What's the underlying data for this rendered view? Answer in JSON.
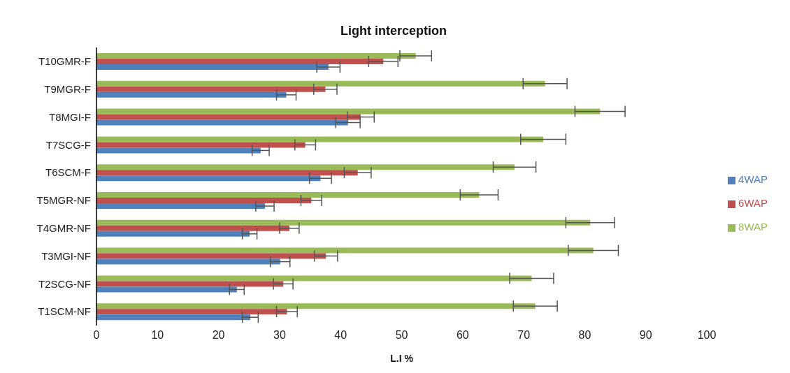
{
  "chart_data": {
    "type": "bar",
    "orientation": "horizontal",
    "title": "Light interception",
    "xlabel": "L.I %",
    "categories": [
      "T10GMR-F",
      "T9MGR-F",
      "T8MGI-F",
      "T7SCG-F",
      "T6SCM-F",
      "T5MGR-NF",
      "T4GMR-NF",
      "T3MGI-NF",
      "T2SCG-NF",
      "T1SCM-NF"
    ],
    "series": [
      {
        "name": "8WAP",
        "color": "#9bbb59",
        "values": [
          52.3,
          73.5,
          82.5,
          73.2,
          68.5,
          62.7,
          80.9,
          81.4,
          71.3,
          71.9
        ],
        "errors": [
          2.6,
          3.6,
          4.1,
          3.7,
          3.5,
          3.1,
          4.0,
          4.1,
          3.6,
          3.6
        ]
      },
      {
        "name": "6WAP",
        "color": "#c0504d",
        "values": [
          47.0,
          37.5,
          43.3,
          34.2,
          42.8,
          35.2,
          31.6,
          37.6,
          30.6,
          31.2
        ],
        "errors": [
          2.4,
          1.9,
          2.2,
          1.7,
          2.2,
          1.7,
          1.6,
          1.9,
          1.6,
          1.7
        ]
      },
      {
        "name": "4WAP",
        "color": "#4f81bd",
        "values": [
          38.0,
          31.1,
          41.2,
          26.9,
          36.7,
          27.6,
          25.1,
          30.1,
          23.0,
          25.2
        ],
        "errors": [
          1.9,
          1.6,
          2.0,
          1.4,
          1.8,
          1.5,
          1.2,
          1.6,
          1.2,
          1.3
        ]
      }
    ],
    "xlim": [
      0,
      100
    ],
    "xticks": [
      0,
      10,
      20,
      30,
      40,
      50,
      60,
      70,
      80,
      90,
      100
    ],
    "legend": "right"
  }
}
